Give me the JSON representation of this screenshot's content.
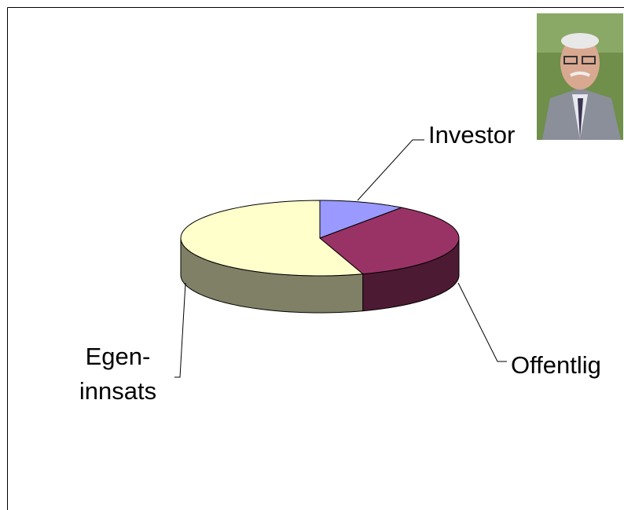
{
  "chart_data": {
    "type": "pie3d",
    "categories": [
      "Investor",
      "Offentlig",
      "Egen-\ninnsats"
    ],
    "values": [
      10,
      35,
      55
    ],
    "colors": [
      "#9999ff",
      "#993366",
      "#ffffcc"
    ],
    "side_colors": [
      "#4d4d80",
      "#4d1a33",
      "#808066"
    ]
  }
}
